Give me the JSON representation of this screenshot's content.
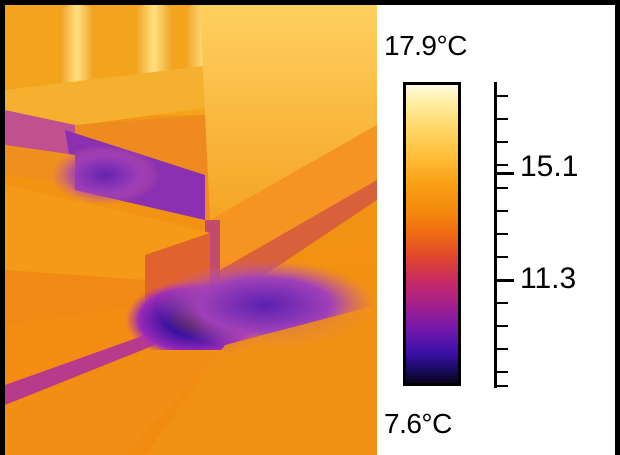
{
  "image": {
    "subject": "thermal infrared image of a building corner with balustrade and steps",
    "palette": "ironbow"
  },
  "scale": {
    "max_label": "17.9°C",
    "min_label": "7.6°C",
    "max_value": 17.9,
    "min_value": 7.6,
    "tick_labels": [
      "15.1",
      "11.3"
    ],
    "tick_values": [
      15.1,
      11.3
    ]
  },
  "colors": {
    "hot": "#fffbe0",
    "warm": "#f9a016",
    "mid": "#e0462e",
    "cool": "#7318ac",
    "cold": "#0a0420"
  }
}
